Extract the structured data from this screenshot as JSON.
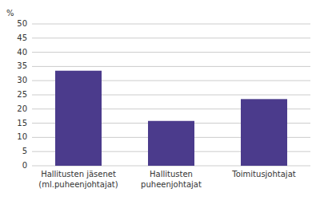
{
  "chart_data": {
    "type": "bar",
    "categories": [
      "Hallitusten jäsenet\n(ml.puheenjohtajat)",
      "Hallitusten\npuheenjohtajat",
      "Toimitusjohtajat"
    ],
    "values": [
      33.5,
      15.8,
      23.5
    ],
    "color": "#4B3B8C",
    "ylabel": "%",
    "ylim": [
      0,
      50
    ],
    "yticks": [
      0,
      5,
      10,
      15,
      20,
      25,
      30,
      35,
      40,
      45,
      50
    ],
    "grid": true
  }
}
